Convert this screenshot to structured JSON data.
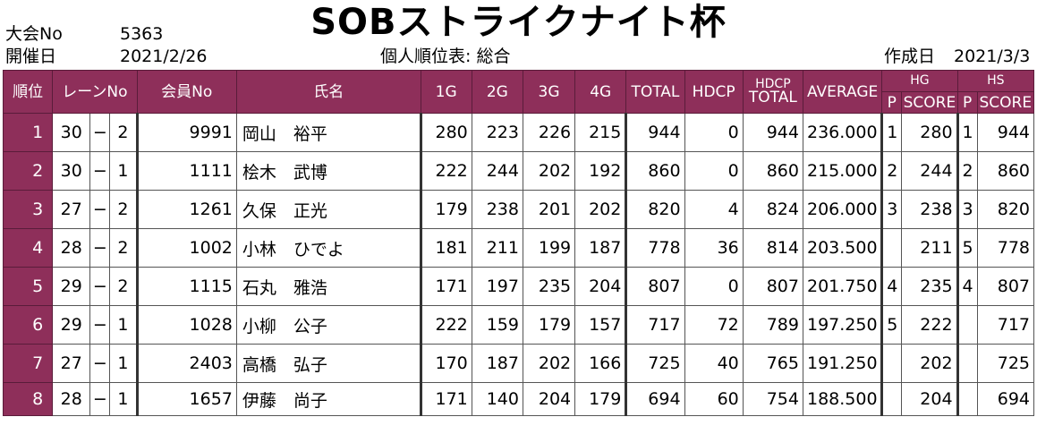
{
  "header": {
    "title": "SOBストライクナイト杯",
    "tournament_label": "大会No",
    "tournament_no": "5363",
    "date_label": "開催日",
    "date": "2021/2/26",
    "table_title": "個人順位表: 総合",
    "created_label": "作成日",
    "created_date": "2021/3/3"
  },
  "columns": {
    "rank": "順位",
    "lane": "レーンNo",
    "member": "会員No",
    "name": "氏名",
    "g1": "1G",
    "g2": "2G",
    "g3": "3G",
    "g4": "4G",
    "total": "TOTAL",
    "hdcp": "HDCP",
    "hdcp_total_1": "HDCP",
    "hdcp_total_2": "TOTAL",
    "average": "AVERAGE",
    "hg": "HG",
    "hs": "HS",
    "p": "P",
    "score": "SCORE"
  },
  "rows": [
    {
      "rank": "1",
      "lane_a": "30",
      "dash": "−",
      "lane_b": "2",
      "member": "9991",
      "name": "岡山　裕平",
      "g1": "280",
      "g2": "223",
      "g3": "226",
      "g4": "215",
      "total": "944",
      "hdcp": "0",
      "hdcp_total": "944",
      "average": "236.000",
      "hg_p": "1",
      "hg_score": "280",
      "hs_p": "1",
      "hs_score": "944"
    },
    {
      "rank": "2",
      "lane_a": "30",
      "dash": "−",
      "lane_b": "1",
      "member": "1111",
      "name": "桧木　武博",
      "g1": "222",
      "g2": "244",
      "g3": "202",
      "g4": "192",
      "total": "860",
      "hdcp": "0",
      "hdcp_total": "860",
      "average": "215.000",
      "hg_p": "2",
      "hg_score": "244",
      "hs_p": "2",
      "hs_score": "860"
    },
    {
      "rank": "3",
      "lane_a": "27",
      "dash": "−",
      "lane_b": "2",
      "member": "1261",
      "name": "久保　正光",
      "g1": "179",
      "g2": "238",
      "g3": "201",
      "g4": "202",
      "total": "820",
      "hdcp": "4",
      "hdcp_total": "824",
      "average": "206.000",
      "hg_p": "3",
      "hg_score": "238",
      "hs_p": "3",
      "hs_score": "820"
    },
    {
      "rank": "4",
      "lane_a": "28",
      "dash": "−",
      "lane_b": "2",
      "member": "1002",
      "name": "小林　ひでよ",
      "g1": "181",
      "g2": "211",
      "g3": "199",
      "g4": "187",
      "total": "778",
      "hdcp": "36",
      "hdcp_total": "814",
      "average": "203.500",
      "hg_p": "",
      "hg_score": "211",
      "hs_p": "5",
      "hs_score": "778"
    },
    {
      "rank": "5",
      "lane_a": "29",
      "dash": "−",
      "lane_b": "2",
      "member": "1115",
      "name": "石丸　雅浩",
      "g1": "171",
      "g2": "197",
      "g3": "235",
      "g4": "204",
      "total": "807",
      "hdcp": "0",
      "hdcp_total": "807",
      "average": "201.750",
      "hg_p": "4",
      "hg_score": "235",
      "hs_p": "4",
      "hs_score": "807"
    },
    {
      "rank": "6",
      "lane_a": "29",
      "dash": "−",
      "lane_b": "1",
      "member": "1028",
      "name": "小柳　公子",
      "g1": "222",
      "g2": "159",
      "g3": "179",
      "g4": "157",
      "total": "717",
      "hdcp": "72",
      "hdcp_total": "789",
      "average": "197.250",
      "hg_p": "5",
      "hg_score": "222",
      "hs_p": "",
      "hs_score": "717"
    },
    {
      "rank": "7",
      "lane_a": "27",
      "dash": "−",
      "lane_b": "1",
      "member": "2403",
      "name": "高橋　弘子",
      "g1": "170",
      "g2": "187",
      "g3": "202",
      "g4": "166",
      "total": "725",
      "hdcp": "40",
      "hdcp_total": "765",
      "average": "191.250",
      "hg_p": "",
      "hg_score": "202",
      "hs_p": "",
      "hs_score": "725"
    },
    {
      "rank": "8",
      "lane_a": "28",
      "dash": "−",
      "lane_b": "1",
      "member": "1657",
      "name": "伊藤　尚子",
      "g1": "171",
      "g2": "140",
      "g3": "204",
      "g4": "179",
      "total": "694",
      "hdcp": "60",
      "hdcp_total": "754",
      "average": "188.500",
      "hg_p": "",
      "hg_score": "204",
      "hs_p": "",
      "hs_score": "694"
    }
  ],
  "colors": {
    "header_bg": "#8e2f5a",
    "header_text": "#ffffff"
  }
}
